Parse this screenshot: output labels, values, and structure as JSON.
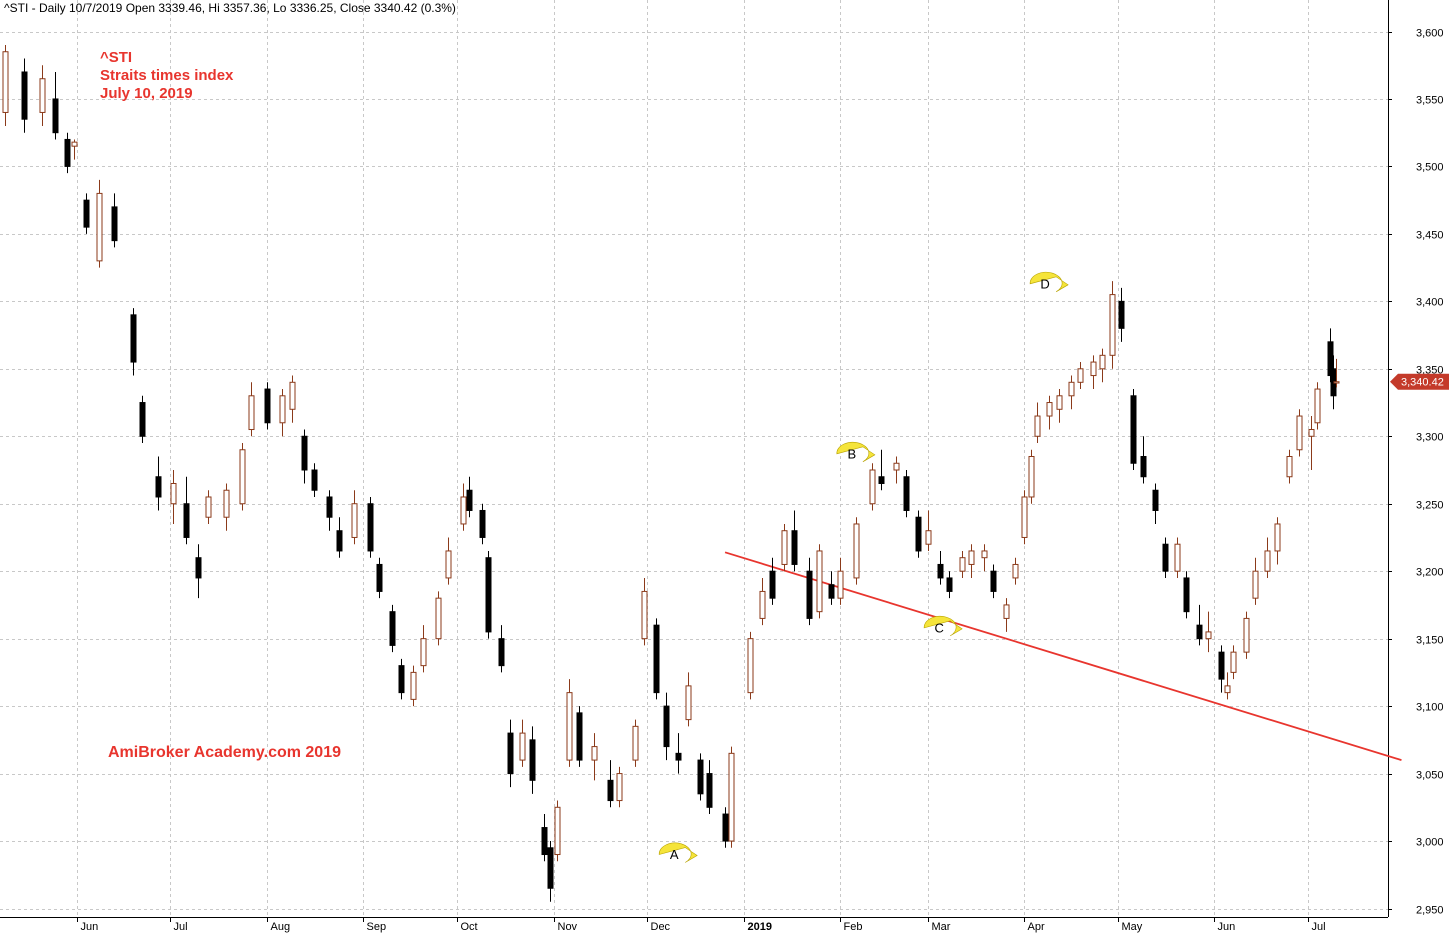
{
  "header": {
    "text": "^STI - Daily 10/7/2019 Open 3339.46, Hi 3357.36, Lo 3336.25, Close 3340.42 (0.3%)"
  },
  "annotations": {
    "ticker": "^STI",
    "name": "Straits times index",
    "date": "July 10, 2019",
    "watermark": "AmiBroker Academy.com  2019"
  },
  "markers": [
    {
      "label": "A",
      "date": "2018-12-10",
      "value": 2990
    },
    {
      "label": "B",
      "date": "2019-02-05",
      "value": 3287
    },
    {
      "label": "C",
      "date": "2019-03-05",
      "value": 3158
    },
    {
      "label": "D",
      "date": "2019-04-08",
      "value": 3413
    }
  ],
  "last_price_label": "3,340.42",
  "colors": {
    "up": "#8b3a1a",
    "down": "#000000",
    "trendline": "#e8352e",
    "marker_fill": "#f5e43a",
    "price_tag": "#c43a2a",
    "grid": "#c8c8c8"
  },
  "chart_data": {
    "type": "candlestick",
    "title": "",
    "timeframe": "Daily",
    "ylim": [
      2950,
      3600
    ],
    "y_ticks": [
      "2,950",
      "3,000",
      "3,050",
      "3,100",
      "3,150",
      "3,200",
      "3,250",
      "3,300",
      "3,350",
      "3,400",
      "3,450",
      "3,500",
      "3,550",
      "3,600"
    ],
    "x_ticks": [
      {
        "date": "2018-06-01",
        "label": "Jun",
        "bold": false
      },
      {
        "date": "2018-07-01",
        "label": "Jul",
        "bold": false
      },
      {
        "date": "2018-08-01",
        "label": "Aug",
        "bold": false
      },
      {
        "date": "2018-09-01",
        "label": "Sep",
        "bold": false
      },
      {
        "date": "2018-10-01",
        "label": "Oct",
        "bold": false
      },
      {
        "date": "2018-11-01",
        "label": "Nov",
        "bold": false
      },
      {
        "date": "2018-12-01",
        "label": "Dec",
        "bold": false
      },
      {
        "date": "2019-01-01",
        "label": "2019",
        "bold": true
      },
      {
        "date": "2019-02-01",
        "label": "Feb",
        "bold": false
      },
      {
        "date": "2019-03-01",
        "label": "Mar",
        "bold": false
      },
      {
        "date": "2019-04-01",
        "label": "Apr",
        "bold": false
      },
      {
        "date": "2019-05-01",
        "label": "May",
        "bold": false
      },
      {
        "date": "2019-06-01",
        "label": "Jun",
        "bold": false
      },
      {
        "date": "2019-07-01",
        "label": "Jul",
        "bold": false
      }
    ],
    "trendline": {
      "start": [
        "2018-12-26",
        3214
      ],
      "end": [
        "2019-07-31",
        3060
      ]
    },
    "last": {
      "open": 3339.46,
      "high": 3357.36,
      "low": 3336.25,
      "close": 3340.42
    },
    "series": [
      {
        "date": "2018-05-09",
        "open": 3540,
        "high": 3590,
        "low": 3530,
        "close": 3585
      },
      {
        "date": "2018-05-15",
        "open": 3570,
        "high": 3580,
        "low": 3525,
        "close": 3535
      },
      {
        "date": "2018-05-21",
        "open": 3540,
        "high": 3575,
        "low": 3530,
        "close": 3565
      },
      {
        "date": "2018-05-25",
        "open": 3550,
        "high": 3570,
        "low": 3520,
        "close": 3525
      },
      {
        "date": "2018-05-29",
        "open": 3520,
        "high": 3525,
        "low": 3495,
        "close": 3500
      },
      {
        "date": "2018-05-31",
        "open": 3515,
        "high": 3520,
        "low": 3505,
        "close": 3518
      },
      {
        "date": "2018-06-04",
        "open": 3475,
        "high": 3480,
        "low": 3450,
        "close": 3455
      },
      {
        "date": "2018-06-08",
        "open": 3430,
        "high": 3490,
        "low": 3425,
        "close": 3480
      },
      {
        "date": "2018-06-13",
        "open": 3470,
        "high": 3480,
        "low": 3440,
        "close": 3445
      },
      {
        "date": "2018-06-19",
        "open": 3390,
        "high": 3395,
        "low": 3345,
        "close": 3355
      },
      {
        "date": "2018-06-22",
        "open": 3325,
        "high": 3330,
        "low": 3295,
        "close": 3300
      },
      {
        "date": "2018-06-27",
        "open": 3270,
        "high": 3285,
        "low": 3245,
        "close": 3255
      },
      {
        "date": "2018-07-02",
        "open": 3250,
        "high": 3275,
        "low": 3235,
        "close": 3265
      },
      {
        "date": "2018-07-06",
        "open": 3250,
        "high": 3270,
        "low": 3220,
        "close": 3225
      },
      {
        "date": "2018-07-10",
        "open": 3210,
        "high": 3220,
        "low": 3180,
        "close": 3195
      },
      {
        "date": "2018-07-13",
        "open": 3240,
        "high": 3260,
        "low": 3235,
        "close": 3255
      },
      {
        "date": "2018-07-19",
        "open": 3240,
        "high": 3265,
        "low": 3230,
        "close": 3260
      },
      {
        "date": "2018-07-24",
        "open": 3250,
        "high": 3295,
        "low": 3245,
        "close": 3290
      },
      {
        "date": "2018-07-27",
        "open": 3305,
        "high": 3340,
        "low": 3300,
        "close": 3330
      },
      {
        "date": "2018-08-01",
        "open": 3335,
        "high": 3340,
        "low": 3305,
        "close": 3310
      },
      {
        "date": "2018-08-06",
        "open": 3310,
        "high": 3335,
        "low": 3300,
        "close": 3330
      },
      {
        "date": "2018-08-09",
        "open": 3320,
        "high": 3345,
        "low": 3310,
        "close": 3340
      },
      {
        "date": "2018-08-13",
        "open": 3300,
        "high": 3305,
        "low": 3265,
        "close": 3275
      },
      {
        "date": "2018-08-16",
        "open": 3275,
        "high": 3280,
        "low": 3255,
        "close": 3260
      },
      {
        "date": "2018-08-21",
        "open": 3255,
        "high": 3260,
        "low": 3230,
        "close": 3240
      },
      {
        "date": "2018-08-24",
        "open": 3230,
        "high": 3240,
        "low": 3210,
        "close": 3215
      },
      {
        "date": "2018-08-29",
        "open": 3225,
        "high": 3260,
        "low": 3220,
        "close": 3250
      },
      {
        "date": "2018-09-03",
        "open": 3250,
        "high": 3255,
        "low": 3210,
        "close": 3215
      },
      {
        "date": "2018-09-06",
        "open": 3205,
        "high": 3210,
        "low": 3180,
        "close": 3185
      },
      {
        "date": "2018-09-10",
        "open": 3170,
        "high": 3175,
        "low": 3140,
        "close": 3145
      },
      {
        "date": "2018-09-13",
        "open": 3130,
        "high": 3135,
        "low": 3105,
        "close": 3110
      },
      {
        "date": "2018-09-17",
        "open": 3105,
        "high": 3130,
        "low": 3100,
        "close": 3125
      },
      {
        "date": "2018-09-20",
        "open": 3130,
        "high": 3160,
        "low": 3125,
        "close": 3150
      },
      {
        "date": "2018-09-25",
        "open": 3150,
        "high": 3185,
        "low": 3145,
        "close": 3180
      },
      {
        "date": "2018-09-28",
        "open": 3195,
        "high": 3225,
        "low": 3190,
        "close": 3215
      },
      {
        "date": "2018-10-03",
        "open": 3235,
        "high": 3265,
        "low": 3230,
        "close": 3255
      },
      {
        "date": "2018-10-05",
        "open": 3260,
        "high": 3270,
        "low": 3240,
        "close": 3245
      },
      {
        "date": "2018-10-09",
        "open": 3245,
        "high": 3250,
        "low": 3220,
        "close": 3225
      },
      {
        "date": "2018-10-11",
        "open": 3210,
        "high": 3215,
        "low": 3150,
        "close": 3155
      },
      {
        "date": "2018-10-15",
        "open": 3150,
        "high": 3160,
        "low": 3125,
        "close": 3130
      },
      {
        "date": "2018-10-18",
        "open": 3080,
        "high": 3090,
        "low": 3040,
        "close": 3050
      },
      {
        "date": "2018-10-22",
        "open": 3060,
        "high": 3090,
        "low": 3055,
        "close": 3080
      },
      {
        "date": "2018-10-25",
        "open": 3075,
        "high": 3085,
        "low": 3035,
        "close": 3045
      },
      {
        "date": "2018-10-29",
        "open": 3010,
        "high": 3020,
        "low": 2985,
        "close": 2990
      },
      {
        "date": "2018-10-31",
        "open": 2995,
        "high": 3000,
        "low": 2955,
        "close": 2965
      },
      {
        "date": "2018-11-02",
        "open": 2990,
        "high": 3030,
        "low": 2985,
        "close": 3025
      },
      {
        "date": "2018-11-06",
        "open": 3060,
        "high": 3120,
        "low": 3055,
        "close": 3110
      },
      {
        "date": "2018-11-09",
        "open": 3095,
        "high": 3100,
        "low": 3055,
        "close": 3060
      },
      {
        "date": "2018-11-14",
        "open": 3060,
        "high": 3080,
        "low": 3045,
        "close": 3070
      },
      {
        "date": "2018-11-19",
        "open": 3045,
        "high": 3060,
        "low": 3025,
        "close": 3030
      },
      {
        "date": "2018-11-22",
        "open": 3030,
        "high": 3055,
        "low": 3025,
        "close": 3050
      },
      {
        "date": "2018-11-27",
        "open": 3060,
        "high": 3090,
        "low": 3055,
        "close": 3085
      },
      {
        "date": "2018-11-30",
        "open": 3150,
        "high": 3195,
        "low": 3145,
        "close": 3185
      },
      {
        "date": "2018-12-04",
        "open": 3160,
        "high": 3165,
        "low": 3105,
        "close": 3110
      },
      {
        "date": "2018-12-07",
        "open": 3100,
        "high": 3110,
        "low": 3060,
        "close": 3070
      },
      {
        "date": "2018-12-11",
        "open": 3065,
        "high": 3080,
        "low": 3050,
        "close": 3060
      },
      {
        "date": "2018-12-14",
        "open": 3090,
        "high": 3125,
        "low": 3085,
        "close": 3115
      },
      {
        "date": "2018-12-18",
        "open": 3060,
        "high": 3065,
        "low": 3030,
        "close": 3035
      },
      {
        "date": "2018-12-21",
        "open": 3050,
        "high": 3060,
        "low": 3020,
        "close": 3025
      },
      {
        "date": "2018-12-26",
        "open": 3020,
        "high": 3025,
        "low": 2995,
        "close": 3000
      },
      {
        "date": "2018-12-28",
        "open": 3000,
        "high": 3070,
        "low": 2995,
        "close": 3065
      },
      {
        "date": "2019-01-03",
        "open": 3110,
        "high": 3155,
        "low": 3105,
        "close": 3150
      },
      {
        "date": "2019-01-07",
        "open": 3165,
        "high": 3195,
        "low": 3160,
        "close": 3185
      },
      {
        "date": "2019-01-10",
        "open": 3200,
        "high": 3210,
        "low": 3175,
        "close": 3180
      },
      {
        "date": "2019-01-14",
        "open": 3205,
        "high": 3235,
        "low": 3200,
        "close": 3230
      },
      {
        "date": "2019-01-17",
        "open": 3230,
        "high": 3245,
        "low": 3200,
        "close": 3205
      },
      {
        "date": "2019-01-22",
        "open": 3200,
        "high": 3210,
        "low": 3160,
        "close": 3165
      },
      {
        "date": "2019-01-25",
        "open": 3170,
        "high": 3220,
        "low": 3165,
        "close": 3215
      },
      {
        "date": "2019-01-29",
        "open": 3190,
        "high": 3200,
        "low": 3175,
        "close": 3180
      },
      {
        "date": "2019-02-01",
        "open": 3180,
        "high": 3210,
        "low": 3175,
        "close": 3200
      },
      {
        "date": "2019-02-06",
        "open": 3195,
        "high": 3240,
        "low": 3190,
        "close": 3235
      },
      {
        "date": "2019-02-11",
        "open": 3250,
        "high": 3280,
        "low": 3245,
        "close": 3275
      },
      {
        "date": "2019-02-14",
        "open": 3270,
        "high": 3290,
        "low": 3260,
        "close": 3265
      },
      {
        "date": "2019-02-19",
        "open": 3275,
        "high": 3285,
        "low": 3265,
        "close": 3280
      },
      {
        "date": "2019-02-22",
        "open": 3270,
        "high": 3275,
        "low": 3240,
        "close": 3245
      },
      {
        "date": "2019-02-26",
        "open": 3240,
        "high": 3245,
        "low": 3210,
        "close": 3215
      },
      {
        "date": "2019-03-01",
        "open": 3220,
        "high": 3245,
        "low": 3215,
        "close": 3230
      },
      {
        "date": "2019-03-05",
        "open": 3205,
        "high": 3215,
        "low": 3190,
        "close": 3195
      },
      {
        "date": "2019-03-08",
        "open": 3195,
        "high": 3200,
        "low": 3180,
        "close": 3185
      },
      {
        "date": "2019-03-12",
        "open": 3200,
        "high": 3215,
        "low": 3195,
        "close": 3210
      },
      {
        "date": "2019-03-15",
        "open": 3205,
        "high": 3220,
        "low": 3195,
        "close": 3215
      },
      {
        "date": "2019-03-19",
        "open": 3210,
        "high": 3220,
        "low": 3200,
        "close": 3215
      },
      {
        "date": "2019-03-22",
        "open": 3200,
        "high": 3205,
        "low": 3180,
        "close": 3185
      },
      {
        "date": "2019-03-26",
        "open": 3165,
        "high": 3180,
        "low": 3155,
        "close": 3175
      },
      {
        "date": "2019-03-29",
        "open": 3195,
        "high": 3210,
        "low": 3190,
        "close": 3205
      },
      {
        "date": "2019-04-01",
        "open": 3225,
        "high": 3260,
        "low": 3220,
        "close": 3255
      },
      {
        "date": "2019-04-03",
        "open": 3255,
        "high": 3290,
        "low": 3250,
        "close": 3285
      },
      {
        "date": "2019-04-05",
        "open": 3300,
        "high": 3325,
        "low": 3295,
        "close": 3315
      },
      {
        "date": "2019-04-09",
        "open": 3315,
        "high": 3330,
        "low": 3305,
        "close": 3325
      },
      {
        "date": "2019-04-12",
        "open": 3320,
        "high": 3335,
        "low": 3310,
        "close": 3330
      },
      {
        "date": "2019-04-16",
        "open": 3330,
        "high": 3345,
        "low": 3320,
        "close": 3340
      },
      {
        "date": "2019-04-19",
        "open": 3340,
        "high": 3355,
        "low": 3335,
        "close": 3350
      },
      {
        "date": "2019-04-23",
        "open": 3345,
        "high": 3360,
        "low": 3335,
        "close": 3355
      },
      {
        "date": "2019-04-26",
        "open": 3350,
        "high": 3365,
        "low": 3340,
        "close": 3360
      },
      {
        "date": "2019-04-29",
        "open": 3360,
        "high": 3415,
        "low": 3350,
        "close": 3405
      },
      {
        "date": "2019-05-02",
        "open": 3400,
        "high": 3410,
        "low": 3370,
        "close": 3380
      },
      {
        "date": "2019-05-06",
        "open": 3330,
        "high": 3335,
        "low": 3275,
        "close": 3280
      },
      {
        "date": "2019-05-09",
        "open": 3285,
        "high": 3300,
        "low": 3265,
        "close": 3270
      },
      {
        "date": "2019-05-13",
        "open": 3260,
        "high": 3265,
        "low": 3235,
        "close": 3245
      },
      {
        "date": "2019-05-16",
        "open": 3220,
        "high": 3225,
        "low": 3195,
        "close": 3200
      },
      {
        "date": "2019-05-20",
        "open": 3200,
        "high": 3225,
        "low": 3195,
        "close": 3220
      },
      {
        "date": "2019-05-23",
        "open": 3195,
        "high": 3200,
        "low": 3165,
        "close": 3170
      },
      {
        "date": "2019-05-27",
        "open": 3160,
        "high": 3175,
        "low": 3145,
        "close": 3150
      },
      {
        "date": "2019-05-30",
        "open": 3150,
        "high": 3170,
        "low": 3140,
        "close": 3155
      },
      {
        "date": "2019-06-03",
        "open": 3140,
        "high": 3145,
        "low": 3110,
        "close": 3120
      },
      {
        "date": "2019-06-05",
        "open": 3110,
        "high": 3125,
        "low": 3105,
        "close": 3115
      },
      {
        "date": "2019-06-07",
        "open": 3125,
        "high": 3145,
        "low": 3120,
        "close": 3140
      },
      {
        "date": "2019-06-11",
        "open": 3140,
        "high": 3170,
        "low": 3135,
        "close": 3165
      },
      {
        "date": "2019-06-14",
        "open": 3180,
        "high": 3210,
        "low": 3175,
        "close": 3200
      },
      {
        "date": "2019-06-18",
        "open": 3200,
        "high": 3225,
        "low": 3195,
        "close": 3215
      },
      {
        "date": "2019-06-21",
        "open": 3215,
        "high": 3240,
        "low": 3205,
        "close": 3235
      },
      {
        "date": "2019-06-25",
        "open": 3270,
        "high": 3290,
        "low": 3265,
        "close": 3285
      },
      {
        "date": "2019-06-28",
        "open": 3290,
        "high": 3320,
        "low": 3285,
        "close": 3315
      },
      {
        "date": "2019-07-02",
        "open": 3300,
        "high": 3315,
        "low": 3275,
        "close": 3305
      },
      {
        "date": "2019-07-04",
        "open": 3310,
        "high": 3340,
        "low": 3305,
        "close": 3335
      },
      {
        "date": "2019-07-08",
        "open": 3370,
        "high": 3380,
        "low": 3340,
        "close": 3345
      },
      {
        "date": "2019-07-09",
        "open": 3350,
        "high": 3360,
        "low": 3320,
        "close": 3330
      },
      {
        "date": "2019-07-10",
        "open": 3339.46,
        "high": 3357.36,
        "low": 3336.25,
        "close": 3340.42
      }
    ]
  }
}
